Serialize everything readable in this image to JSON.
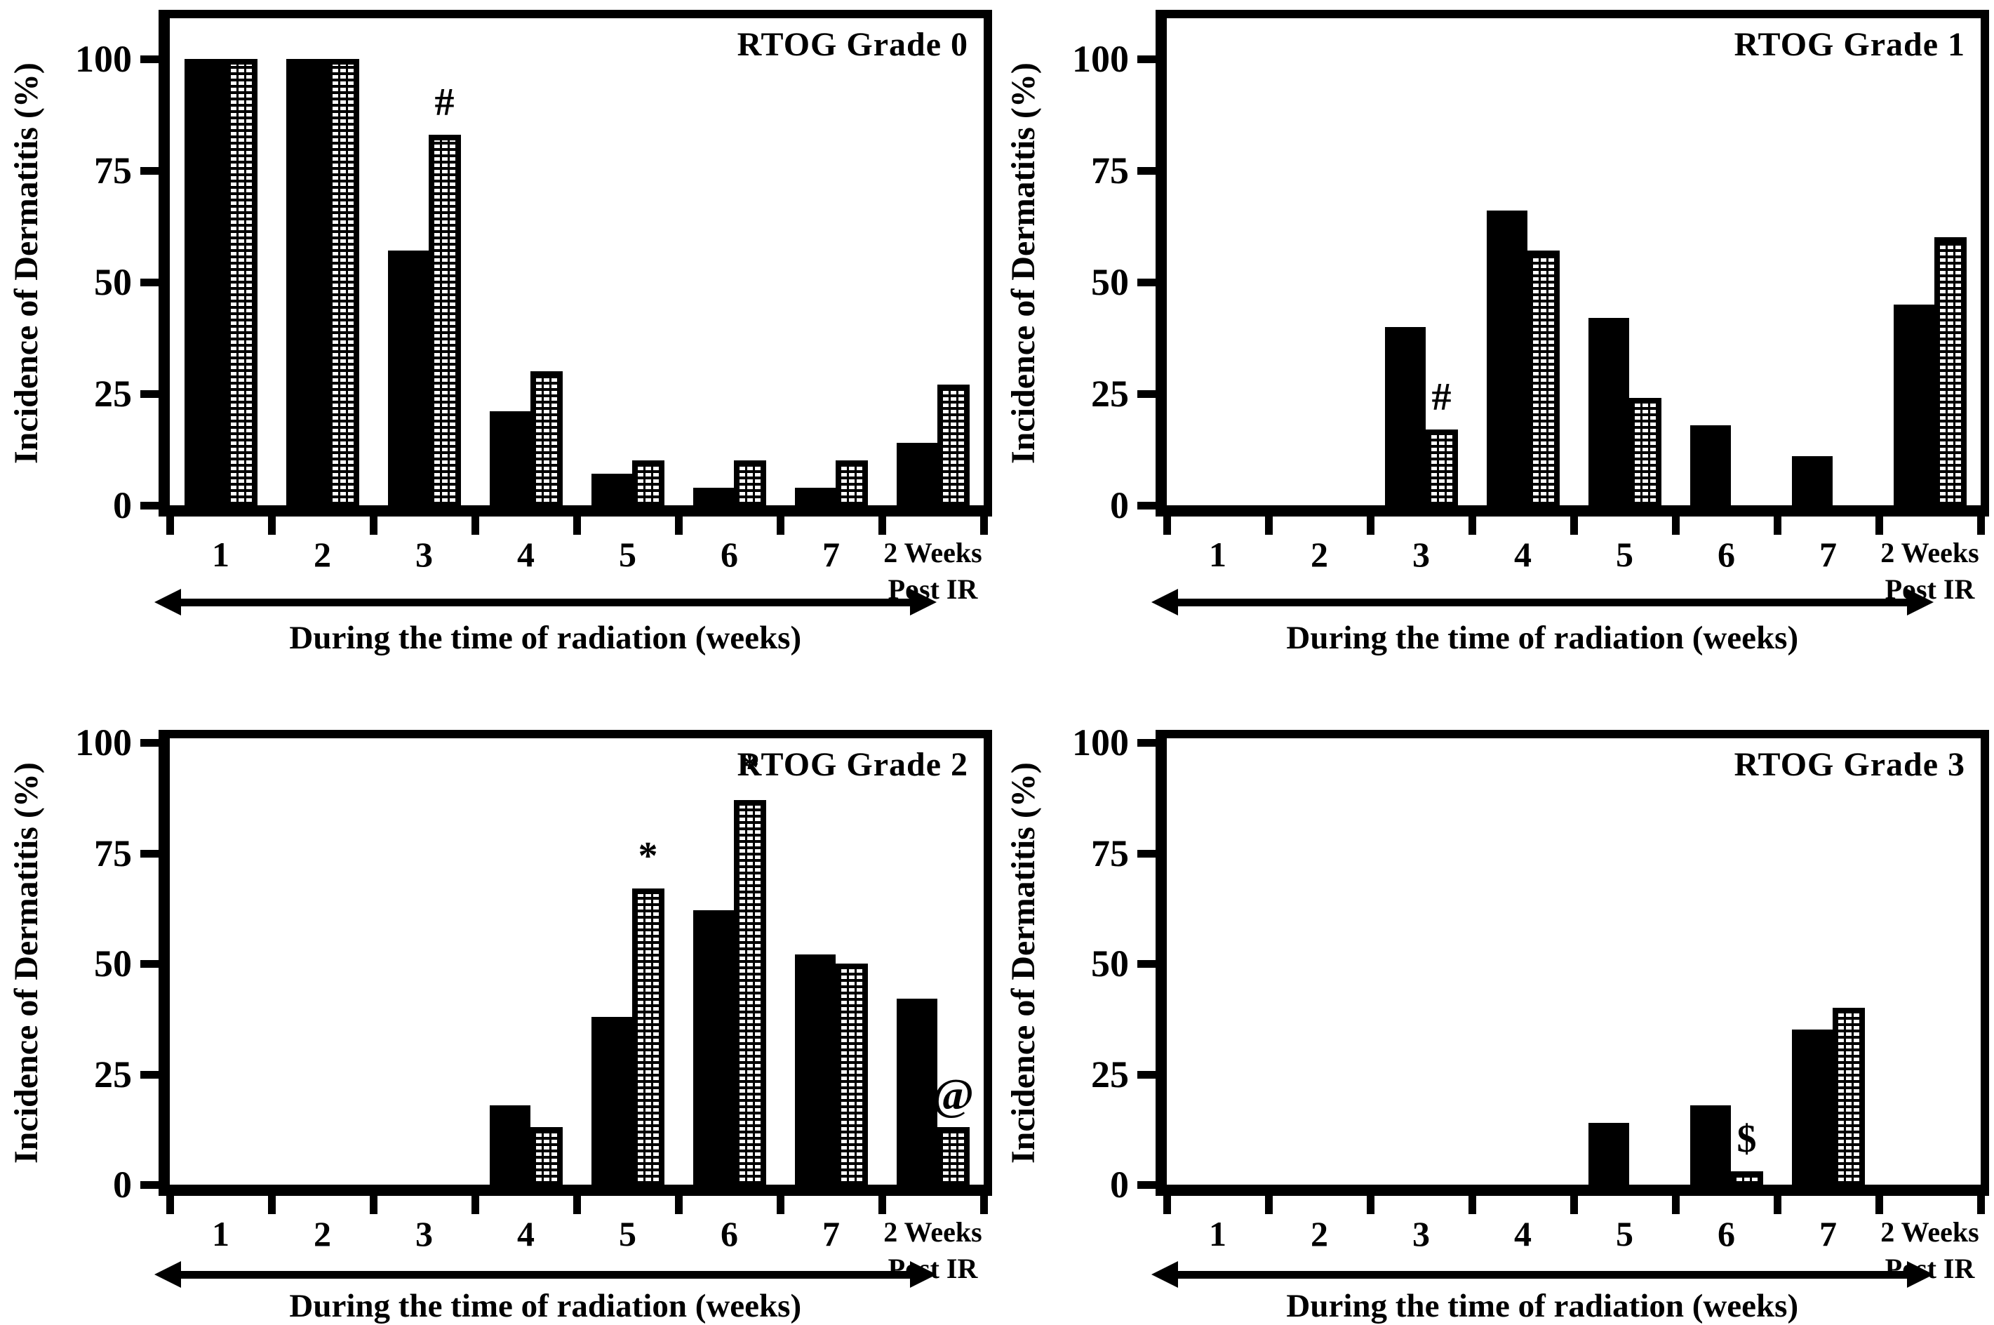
{
  "figure": {
    "background_color": "#ffffff",
    "ink_color": "#000000",
    "hatch_dash_color": "#ffffff"
  },
  "chart_data": [
    {
      "type": "bar",
      "title": "RTOG Grade 0",
      "ylabel": "Incidence of Dermatitis (%)",
      "xlabel": "During the time of radiation (weeks)",
      "categories": [
        "1",
        "2",
        "3",
        "4",
        "5",
        "6",
        "7",
        "2 Weeks Post IR"
      ],
      "category_lines": [
        [
          "1"
        ],
        [
          "2"
        ],
        [
          "3"
        ],
        [
          "4"
        ],
        [
          "5"
        ],
        [
          "6"
        ],
        [
          "7"
        ],
        [
          "2 Weeks",
          "Post IR"
        ]
      ],
      "yticks": [
        0,
        25,
        50,
        75,
        100
      ],
      "ylim": [
        0,
        109
      ],
      "grid": false,
      "legend": "none",
      "series": [
        {
          "name": "solid-black",
          "values": [
            100,
            100,
            57,
            21,
            7,
            4,
            4,
            14
          ]
        },
        {
          "name": "hatched",
          "values": [
            100,
            100,
            83,
            30,
            10,
            10,
            10,
            27
          ]
        }
      ],
      "annotations": [
        {
          "category_index": 2,
          "series": "hatched",
          "symbol": "#"
        }
      ]
    },
    {
      "type": "bar",
      "title": "RTOG Grade 1",
      "ylabel": "Incidence of Dermatitis (%)",
      "xlabel": "During the time of radiation (weeks)",
      "categories": [
        "1",
        "2",
        "3",
        "4",
        "5",
        "6",
        "7",
        "2 Weeks Post IR"
      ],
      "category_lines": [
        [
          "1"
        ],
        [
          "2"
        ],
        [
          "3"
        ],
        [
          "4"
        ],
        [
          "5"
        ],
        [
          "6"
        ],
        [
          "7"
        ],
        [
          "2 Weeks",
          "Post IR"
        ]
      ],
      "yticks": [
        0,
        25,
        50,
        75,
        100
      ],
      "ylim": [
        0,
        109
      ],
      "grid": false,
      "legend": "none",
      "series": [
        {
          "name": "solid-black",
          "values": [
            0,
            0,
            40,
            66,
            42,
            18,
            11,
            45
          ]
        },
        {
          "name": "hatched",
          "values": [
            0,
            0,
            17,
            57,
            24,
            0,
            0,
            60
          ]
        }
      ],
      "annotations": [
        {
          "category_index": 2,
          "series": "hatched",
          "symbol": "#"
        }
      ]
    },
    {
      "type": "bar",
      "title": "RTOG Grade 2",
      "ylabel": "Incidence of Dermatitis (%)",
      "xlabel": "During the time of radiation (weeks)",
      "categories": [
        "1",
        "2",
        "3",
        "4",
        "5",
        "6",
        "7",
        "2 Weeks Post IR"
      ],
      "category_lines": [
        [
          "1"
        ],
        [
          "2"
        ],
        [
          "3"
        ],
        [
          "4"
        ],
        [
          "5"
        ],
        [
          "6"
        ],
        [
          "7"
        ],
        [
          "2 Weeks",
          "Post IR"
        ]
      ],
      "yticks": [
        0,
        25,
        50,
        75,
        100
      ],
      "ylim": [
        0,
        101
      ],
      "grid": false,
      "legend": "none",
      "series": [
        {
          "name": "solid-black",
          "values": [
            0,
            0,
            0,
            18,
            38,
            62,
            52,
            42
          ]
        },
        {
          "name": "hatched",
          "values": [
            0,
            0,
            0,
            13,
            67,
            87,
            50,
            13
          ]
        }
      ],
      "annotations": [
        {
          "category_index": 4,
          "series": "hatched",
          "symbol": "*"
        },
        {
          "category_index": 5,
          "series": "hatched",
          "symbol": "*"
        },
        {
          "category_index": 7,
          "series": "hatched",
          "symbol": "@",
          "size": "big"
        }
      ]
    },
    {
      "type": "bar",
      "title": "RTOG Grade 3",
      "ylabel": "Incidence of Dermatitis (%)",
      "xlabel": "During the time of radiation (weeks)",
      "categories": [
        "1",
        "2",
        "3",
        "4",
        "5",
        "6",
        "7",
        "2 Weeks Post IR"
      ],
      "category_lines": [
        [
          "1"
        ],
        [
          "2"
        ],
        [
          "3"
        ],
        [
          "4"
        ],
        [
          "5"
        ],
        [
          "6"
        ],
        [
          "7"
        ],
        [
          "2 Weeks",
          "Post IR"
        ]
      ],
      "yticks": [
        0,
        25,
        50,
        75,
        100
      ],
      "ylim": [
        0,
        101
      ],
      "grid": false,
      "legend": "none",
      "series": [
        {
          "name": "solid-black",
          "values": [
            0,
            0,
            0,
            0,
            14,
            18,
            35,
            0
          ]
        },
        {
          "name": "hatched",
          "values": [
            0,
            0,
            0,
            0,
            0,
            3,
            40,
            0
          ]
        }
      ],
      "annotations": [
        {
          "category_index": 5,
          "series": "hatched",
          "symbol": "$"
        }
      ]
    }
  ]
}
